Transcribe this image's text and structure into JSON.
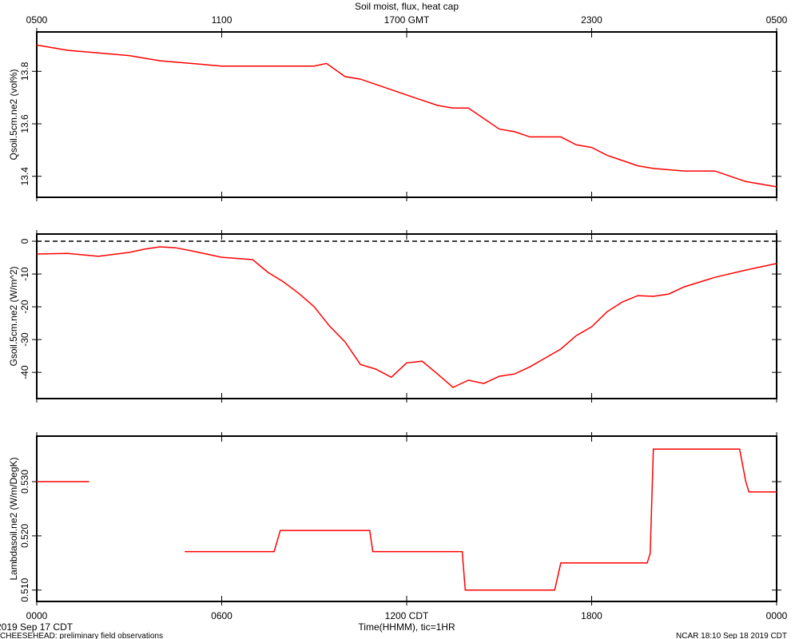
{
  "title": "Soil moist, flux, heat cap",
  "footer": {
    "start_date": "2019 Sep 17 CDT",
    "project": "CHEESEHEAD: preliminary field observations",
    "xlabel": "Time(HHMM), tic=1HR",
    "stamp": "NCAR 18:10 Sep 18 2019 CDT"
  },
  "chart_data": [
    {
      "type": "line",
      "ylabel": "Qsoil.5cm.ne2 (vol%)",
      "xlim": [
        0,
        24
      ],
      "ylim": [
        13.32,
        13.95
      ],
      "yticks": [
        13.4,
        13.6,
        13.8
      ],
      "x2ticks": [
        {
          "value": 0,
          "label": "0500"
        },
        {
          "value": 6,
          "label": "1100"
        },
        {
          "value": 12,
          "label": "1700 GMT"
        },
        {
          "value": 18,
          "label": "2300"
        },
        {
          "value": 24,
          "label": "0500"
        }
      ],
      "x": [
        0,
        1,
        2,
        3,
        4,
        5,
        6,
        7,
        8,
        9,
        9.4,
        10,
        10.5,
        11,
        11.5,
        12,
        12.5,
        13,
        13.5,
        14,
        14.5,
        15,
        15.5,
        16,
        16.5,
        17,
        17.5,
        18,
        18.5,
        19,
        19.5,
        20,
        21,
        22,
        22.5,
        23,
        24
      ],
      "series": [
        {
          "color": "#ff0000",
          "values": [
            13.9,
            13.88,
            13.87,
            13.86,
            13.84,
            13.83,
            13.82,
            13.82,
            13.82,
            13.82,
            13.83,
            13.78,
            13.77,
            13.75,
            13.73,
            13.71,
            13.69,
            13.67,
            13.66,
            13.66,
            13.62,
            13.58,
            13.57,
            13.55,
            13.55,
            13.55,
            13.52,
            13.51,
            13.48,
            13.46,
            13.44,
            13.43,
            13.42,
            13.42,
            13.4,
            13.38,
            13.36
          ]
        }
      ]
    },
    {
      "type": "line",
      "ylabel": "Gsoil.5cm.ne2 (W/m^2)",
      "xlim": [
        0,
        24
      ],
      "ylim": [
        -48,
        2.2
      ],
      "yticks": [
        0,
        -10,
        -20,
        -30,
        -40
      ],
      "reference_line": 0,
      "x": [
        0,
        1,
        2,
        3,
        3.5,
        4,
        4.5,
        5,
        5.5,
        6,
        7,
        7.5,
        8,
        8.5,
        9,
        9.5,
        10,
        10.5,
        11,
        11.5,
        12,
        12.5,
        13,
        13.5,
        14,
        14.5,
        15,
        15.5,
        16,
        16.5,
        17,
        17.5,
        18,
        18.5,
        19,
        19.5,
        20,
        20.5,
        21,
        22,
        23,
        24
      ],
      "series": [
        {
          "color": "#ff0000",
          "values": [
            -3.9,
            -3.7,
            -4.6,
            -3.4,
            -2.4,
            -1.7,
            -2,
            -2.9,
            -3.9,
            -4.9,
            -5.6,
            -9.5,
            -12.4,
            -15.9,
            -20,
            -25.9,
            -30.7,
            -37.6,
            -39,
            -41.5,
            -37.1,
            -36.6,
            -40.5,
            -44.6,
            -42.4,
            -43.4,
            -41.2,
            -40.5,
            -38.3,
            -35.6,
            -32.9,
            -28.8,
            -26.1,
            -21.5,
            -18.5,
            -16.6,
            -16.8,
            -16.1,
            -13.9,
            -11,
            -8.8,
            -6.8
          ]
        }
      ]
    },
    {
      "type": "line",
      "ylabel": "Lambdasoil.ne2 (W/m/DegK)",
      "xlim": [
        0,
        24
      ],
      "ylim": [
        0.5079,
        0.5384
      ],
      "yticks": [
        {
          "value": 0.51,
          "label": "0.510"
        },
        {
          "value": 0.52,
          "label": "0.520"
        },
        {
          "value": 0.53,
          "label": "0.530"
        }
      ],
      "xticks": [
        {
          "value": 0,
          "label": "0000"
        },
        {
          "value": 6,
          "label": "0600"
        },
        {
          "value": 12,
          "label": "1200 CDT"
        },
        {
          "value": 18,
          "label": "1800"
        },
        {
          "value": 24,
          "label": "0000"
        }
      ],
      "x": [
        0,
        1.7,
        3,
        4.8,
        7.7,
        7.9,
        10.8,
        10.9,
        13.8,
        13.9,
        16.8,
        17,
        19.8,
        19.9,
        20,
        22.8,
        23,
        23.1,
        24
      ],
      "series": [
        {
          "color": "#ff0000",
          "values": [
            0.53,
            0.53,
            null,
            0.5171,
            0.5171,
            0.521,
            0.521,
            0.5171,
            0.5171,
            0.51,
            0.51,
            0.515,
            0.515,
            0.5168,
            0.536,
            0.536,
            0.53,
            0.5281,
            0.5281
          ]
        }
      ]
    }
  ]
}
